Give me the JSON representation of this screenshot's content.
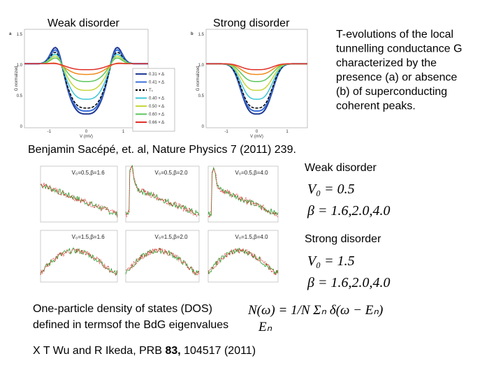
{
  "top_labels": [
    "Weak disorder",
    "Strong disorder"
  ],
  "description_lines": [
    "T-evolutions of the local",
    "tunnelling conductance G",
    "characterized by the",
    "presence (a) or absence",
    "(b) of superconducting",
    "coherent peaks."
  ],
  "citation_1": "Benjamin Sacépé, et. al, Nature Physics 7 (2011) 239.",
  "panels": [
    {
      "label": "a",
      "ylabel": "G normalized",
      "xlabel": "V (mV)",
      "yticks": [
        "1.5",
        "1.0",
        "0.5",
        "0"
      ],
      "xticks": [
        "-1",
        "0",
        "1"
      ],
      "legend": [
        "0.31 × Δ",
        "0.41 × Δ",
        "Tₛ",
        "0.40 × Δ",
        "0.50 × Δ",
        "0.60 × Δ",
        "0.66 × Δ"
      ]
    },
    {
      "label": "b",
      "ylabel": "G normalized",
      "xlabel": "V (mV)",
      "yticks": [
        "1.5",
        "1.0",
        "0.5",
        "0"
      ],
      "xticks": [
        "-1",
        "0",
        "1"
      ]
    }
  ],
  "dos_panels": [
    "V₀=0.5,β=1.6",
    "V₀=0.5,β=2.0",
    "V₀=0.5,β=4.0",
    "V₀=1.5,β=1.6",
    "V₀=1.5,β=2.0",
    "V₀=1.5,β=4.0"
  ],
  "weak": {
    "title": "Weak disorder",
    "v0": "V₀ = 0.5",
    "beta": "β = 1.6,2.0,4.0"
  },
  "strong": {
    "title": "Strong disorder",
    "v0": "V₀ = 1.5",
    "beta": "β = 1.6,2.0,4.0"
  },
  "dos_text": [
    "One-particle density of states (DOS)",
    "defined in termsof the BdG eigenvalues"
  ],
  "dos_formula": "N(ω) = 1/N Σₙ δ(ω − Eₙ)",
  "eigen_symbol": "Eₙ",
  "citation_2": {
    "authors": "X T Wu and R Ikeda, PRB ",
    "volume": "83,",
    "rest": " 104517 (2011)"
  }
}
